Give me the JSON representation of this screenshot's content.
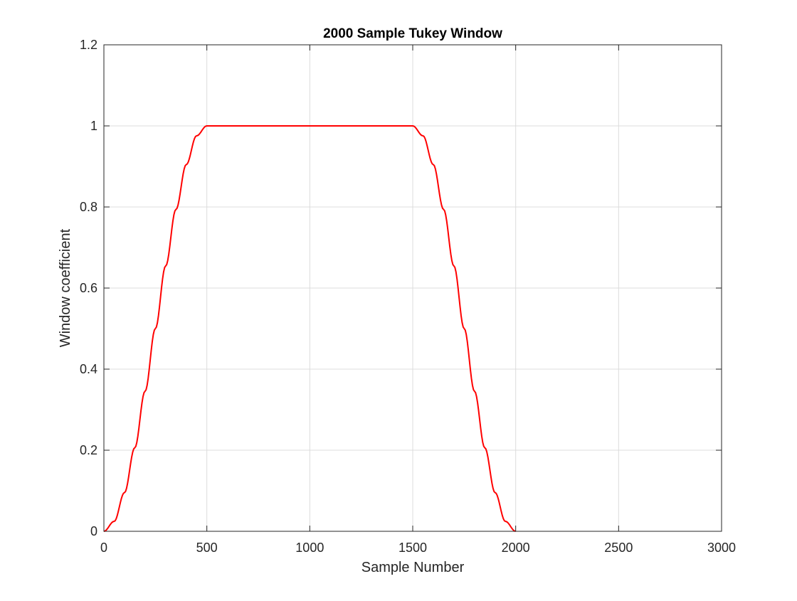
{
  "chart_data": {
    "type": "line",
    "title": "2000 Sample Tukey Window",
    "xlabel": "Sample Number",
    "ylabel": "Window coefficient",
    "xlim": [
      0,
      3000
    ],
    "ylim": [
      0,
      1.2
    ],
    "xticks": [
      0,
      500,
      1000,
      1500,
      2000,
      2500,
      3000
    ],
    "xtick_labels": [
      "0",
      "500",
      "1000",
      "1500",
      "2000",
      "2500",
      "3000"
    ],
    "yticks": [
      0,
      0.2,
      0.4,
      0.6,
      0.8,
      1,
      1.2
    ],
    "ytick_labels": [
      "0",
      "0.2",
      "0.4",
      "0.6",
      "0.8",
      "1",
      "1.2"
    ],
    "grid": true,
    "series": [
      {
        "color": "#ff0000",
        "x": [
          0,
          50,
          100,
          150,
          200,
          250,
          300,
          350,
          400,
          450,
          500,
          1000,
          1500,
          1550,
          1600,
          1650,
          1700,
          1750,
          1800,
          1850,
          1900,
          1950,
          2000
        ],
        "y": [
          0,
          0.0245,
          0.0955,
          0.2061,
          0.3455,
          0.5,
          0.6545,
          0.7939,
          0.9045,
          0.9755,
          1,
          1,
          1,
          0.9755,
          0.9045,
          0.7939,
          0.6545,
          0.5,
          0.3455,
          0.2061,
          0.0955,
          0.0245,
          0
        ]
      }
    ]
  }
}
